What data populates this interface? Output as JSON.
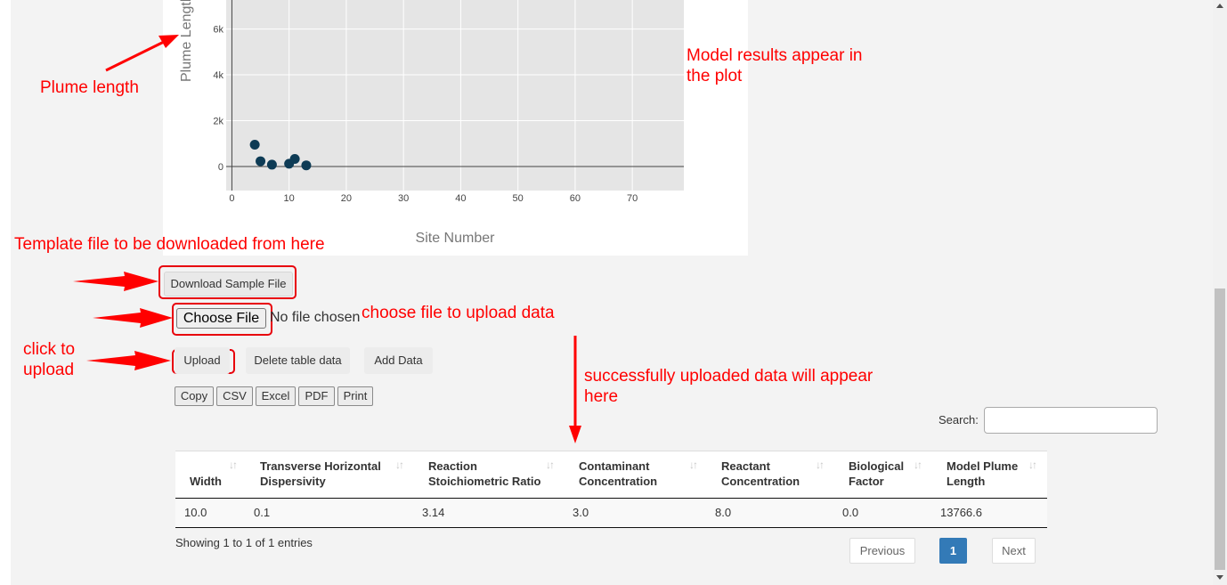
{
  "annotations": {
    "plume_length": "Plume length",
    "model_results": "Model results appear in the plot",
    "model_results_line1": "Model results appear in",
    "model_results_line2": "the plot",
    "template_file": "Template file to be downloaded from here",
    "choose_file": "choose file to upload data",
    "click_upload_line1": "click to",
    "click_upload_line2": "upload",
    "uploaded_line1": "successfully uploaded data will appear",
    "uploaded_line2": "here",
    "color": "#ff0000"
  },
  "chart_data": {
    "type": "scatter",
    "xlabel": "Site Number",
    "ylabel": "Plume Length",
    "xlim": [
      -1,
      79
    ],
    "ylim": [
      -1050,
      7500
    ],
    "x_ticks": [
      0,
      10,
      20,
      30,
      40,
      50,
      60,
      70
    ],
    "y_ticks": [
      0,
      2000,
      4000,
      6000
    ],
    "y_tick_labels": [
      "0",
      "2k",
      "4k",
      "6k"
    ],
    "grid": true,
    "marker_color": "#0d3b55",
    "points": [
      {
        "x": 4,
        "y": 950
      },
      {
        "x": 5,
        "y": 230
      },
      {
        "x": 7,
        "y": 80
      },
      {
        "x": 10,
        "y": 120
      },
      {
        "x": 11,
        "y": 330
      },
      {
        "x": 13,
        "y": 50
      }
    ]
  },
  "controls": {
    "download_sample": "Download Sample File",
    "choose_file": "Choose File",
    "no_file": "No file chosen",
    "upload": "Upload",
    "delete_table": "Delete table data",
    "add_data": "Add Data"
  },
  "export_buttons": [
    "Copy",
    "CSV",
    "Excel",
    "PDF",
    "Print"
  ],
  "search": {
    "label": "Search:",
    "value": ""
  },
  "table": {
    "headers": [
      {
        "line1": "",
        "line2": "Width"
      },
      {
        "line1": "Transverse Horizontal",
        "line2": "Dispersivity"
      },
      {
        "line1": "Reaction",
        "line2": "Stoichiometric Ratio"
      },
      {
        "line1": "Contaminant",
        "line2": "Concentration"
      },
      {
        "line1": "Reactant",
        "line2": "Concentration"
      },
      {
        "line1": "Biological",
        "line2": "Factor"
      },
      {
        "line1": "Model Plume",
        "line2": "Length"
      }
    ],
    "rows": [
      [
        "10.0",
        "0.1",
        "3.14",
        "3.0",
        "8.0",
        "0.0",
        "13766.6"
      ]
    ],
    "info": "Showing 1 to 1 of 1 entries",
    "pagination": {
      "previous": "Previous",
      "current": "1",
      "next": "Next"
    }
  },
  "sort_icon": "sort-both-icon"
}
